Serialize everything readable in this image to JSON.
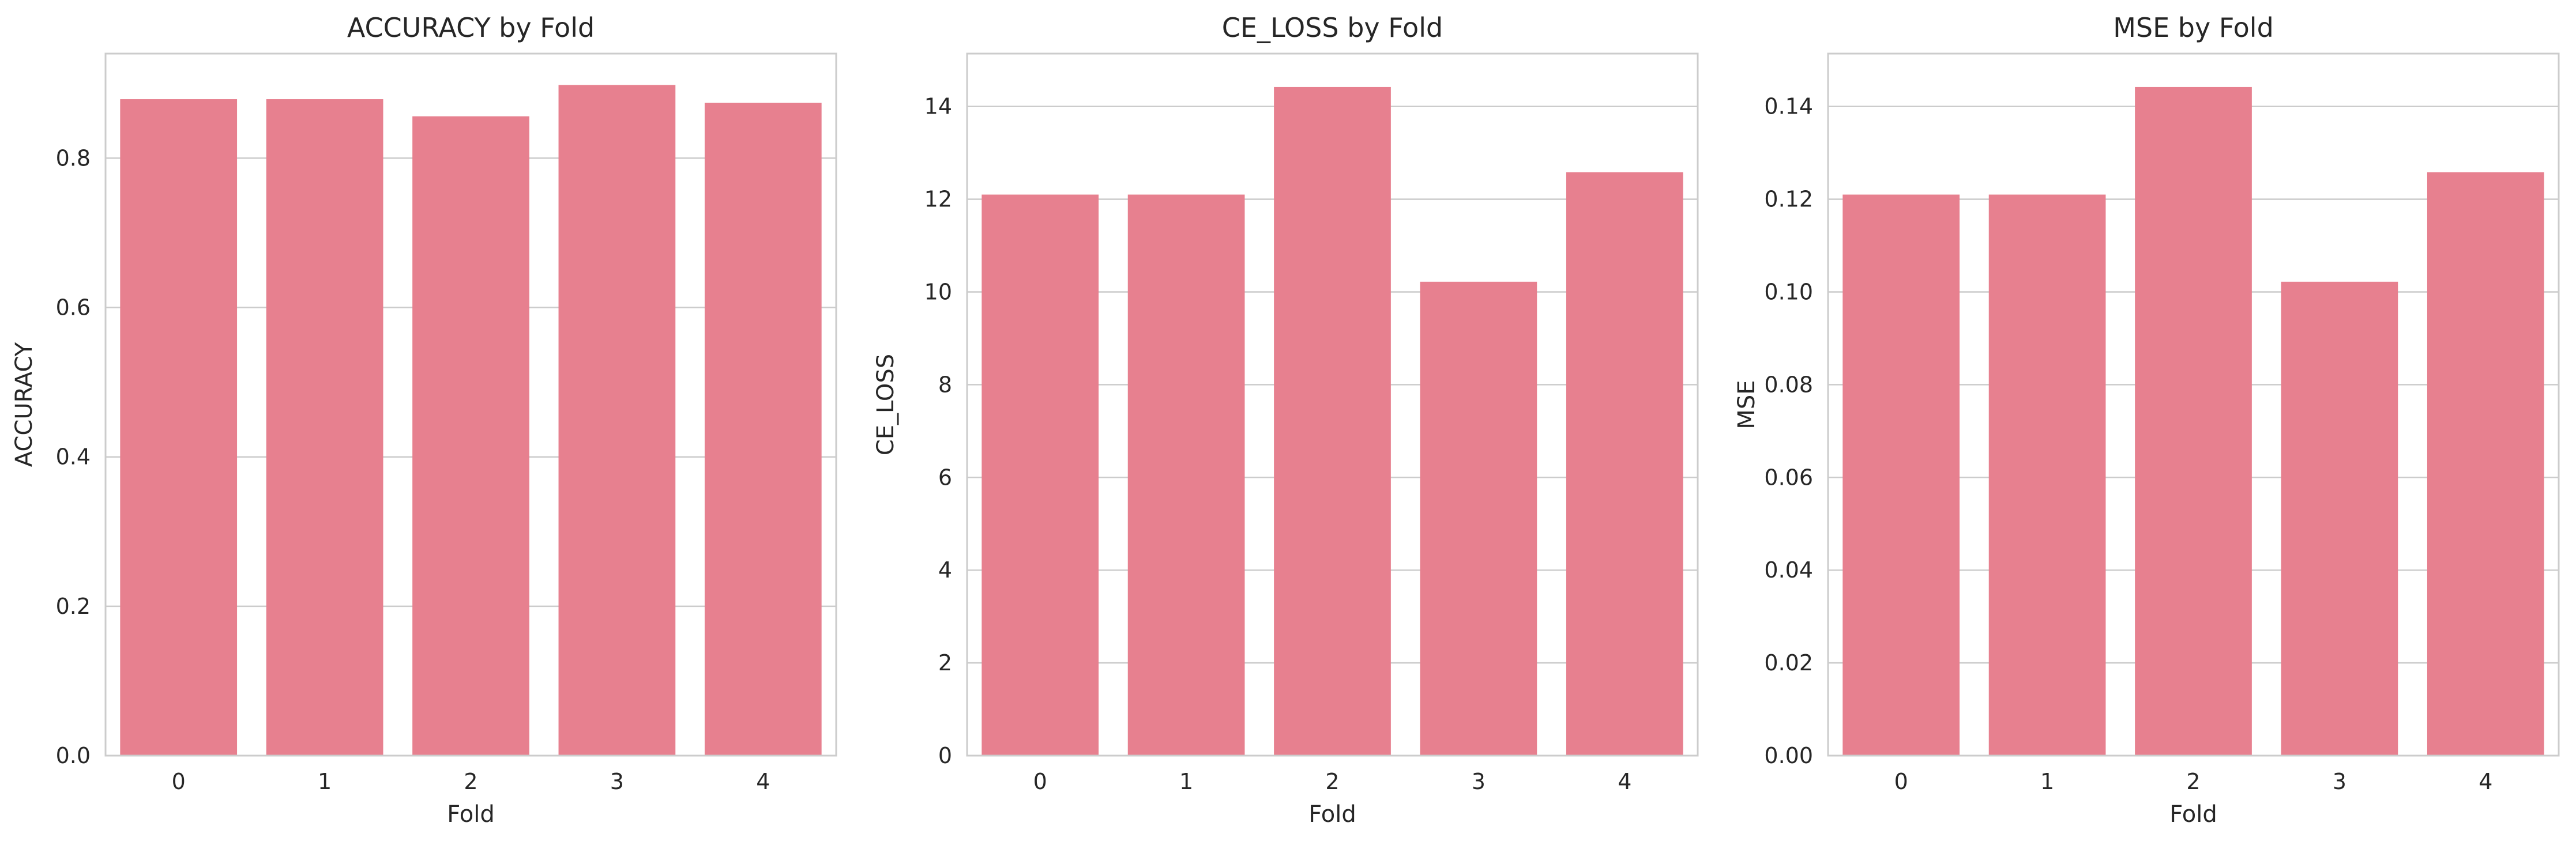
{
  "chart_data": [
    {
      "type": "bar",
      "title": "ACCURACY by Fold",
      "xlabel": "Fold",
      "ylabel": "ACCURACY",
      "categories": [
        "0",
        "1",
        "2",
        "3",
        "4"
      ],
      "values": [
        0.879,
        0.879,
        0.856,
        0.898,
        0.874
      ],
      "ylim": [
        0,
        0.94
      ],
      "yticks": [
        0.0,
        0.2,
        0.4,
        0.6,
        0.8
      ],
      "ytick_labels": [
        "0.0",
        "0.2",
        "0.4",
        "0.6",
        "0.8"
      ],
      "bar_color": "#e7808f",
      "grid": true
    },
    {
      "type": "bar",
      "title": "CE_LOSS by Fold",
      "xlabel": "Fold",
      "ylabel": "CE_LOSS",
      "categories": [
        "0",
        "1",
        "2",
        "3",
        "4"
      ],
      "values": [
        12.1,
        12.1,
        14.42,
        10.22,
        12.58
      ],
      "ylim": [
        0,
        15.14
      ],
      "yticks": [
        0,
        2,
        4,
        6,
        8,
        10,
        12,
        14
      ],
      "ytick_labels": [
        "0",
        "2",
        "4",
        "6",
        "8",
        "10",
        "12",
        "14"
      ],
      "bar_color": "#e7808f",
      "grid": true
    },
    {
      "type": "bar",
      "title": "MSE by Fold",
      "xlabel": "Fold",
      "ylabel": "MSE",
      "categories": [
        "0",
        "1",
        "2",
        "3",
        "4"
      ],
      "values": [
        0.121,
        0.121,
        0.1442,
        0.1022,
        0.1258
      ],
      "ylim": [
        0,
        0.1514
      ],
      "yticks": [
        0.0,
        0.02,
        0.04,
        0.06,
        0.08,
        0.1,
        0.12,
        0.14
      ],
      "ytick_labels": [
        "0.00",
        "0.02",
        "0.04",
        "0.06",
        "0.08",
        "0.10",
        "0.12",
        "0.14"
      ],
      "bar_color": "#e7808f",
      "grid": true
    }
  ]
}
